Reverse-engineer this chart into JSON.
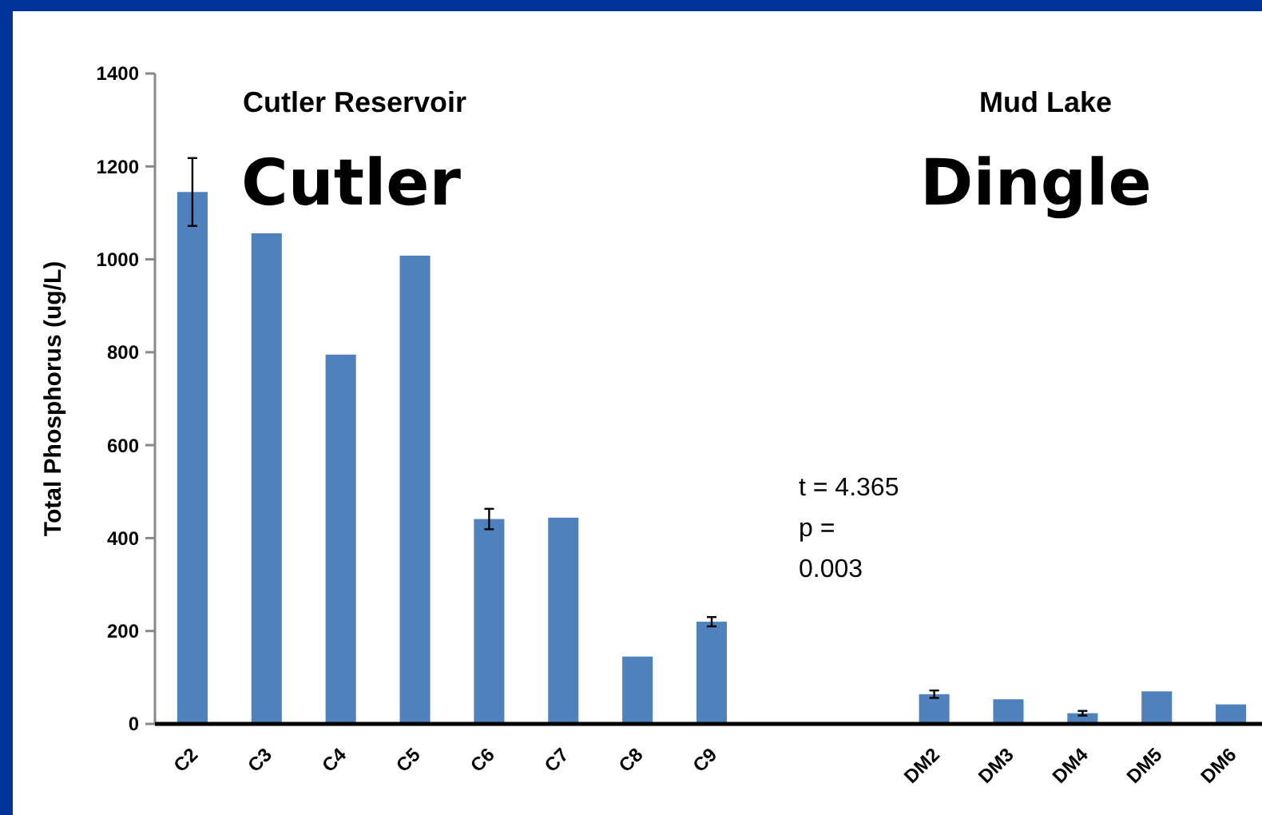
{
  "chart_data": {
    "type": "bar",
    "ylabel": "Total  Phosphorus  (ug/L)",
    "categories": [
      "C2",
      "C3",
      "C4",
      "C5",
      "C6",
      "C7",
      "C8",
      "C9",
      null,
      null,
      "DM2",
      "DM3",
      "DM4",
      "DM5",
      "DM6"
    ],
    "values": [
      1145,
      1056,
      795,
      1008,
      441,
      444,
      145,
      220,
      null,
      null,
      64,
      53,
      23,
      70,
      42
    ],
    "errors": [
      73,
      null,
      null,
      null,
      22,
      null,
      null,
      10,
      null,
      null,
      8,
      null,
      5,
      null,
      null
    ],
    "color": "#4f81bd",
    "ylim": [
      0,
      1400
    ],
    "yticks": [
      0,
      200,
      400,
      600,
      800,
      1000,
      1200,
      1400
    ],
    "annotations": [
      "Cutler Reservoir",
      "Cutler",
      "Mud Lake",
      "Dingle",
      "t = 4.365\np =\n0.003"
    ]
  }
}
